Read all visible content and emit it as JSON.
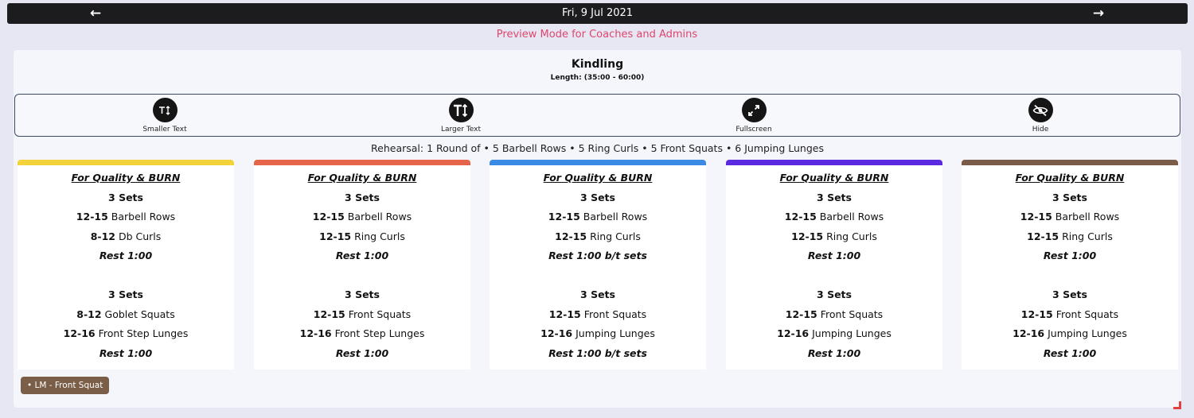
{
  "header": {
    "date": "Fri, 9 Jul 2021",
    "prev_icon": "arrow-left-icon",
    "next_icon": "arrow-right-icon"
  },
  "preview_notice": "Preview Mode for Coaches and Admins",
  "workout": {
    "title": "Kindling",
    "length": "Length: (35:00 - 60:00)"
  },
  "toolbar": [
    {
      "label": "Smaller Text",
      "icon": "smaller-text-icon"
    },
    {
      "label": "Larger Text",
      "icon": "larger-text-icon"
    },
    {
      "label": "Fullscreen",
      "icon": "fullscreen-icon"
    },
    {
      "label": "Hide",
      "icon": "hide-eye-icon"
    }
  ],
  "rehearsal": "Rehearsal: 1 Round of • 5 Barbell Rows • 5 Ring Curls • 5 Front Squats • 6 Jumping Lunges",
  "tracks": [
    {
      "color": "#f2d33c",
      "lines": [
        {
          "style": "header",
          "bold": "",
          "text": "For Quality & BURN"
        },
        {
          "style": "b",
          "bold": "3 Sets",
          "text": ""
        },
        {
          "style": "rx",
          "bold": "12-15",
          "text": " Barbell Rows"
        },
        {
          "style": "rx",
          "bold": "8-12",
          "text": " Db Curls"
        },
        {
          "style": "bi",
          "bold": "Rest 1:00",
          "text": ""
        },
        {
          "style": "blank",
          "bold": "",
          "text": ""
        },
        {
          "style": "b",
          "bold": "3 Sets",
          "text": ""
        },
        {
          "style": "rx",
          "bold": "8-12",
          "text": " Goblet Squats"
        },
        {
          "style": "rx",
          "bold": "12-16",
          "text": " Front Step Lunges"
        },
        {
          "style": "bi",
          "bold": "Rest 1:00",
          "text": ""
        }
      ]
    },
    {
      "color": "#e5644a",
      "lines": [
        {
          "style": "header",
          "bold": "",
          "text": "For Quality & BURN"
        },
        {
          "style": "b",
          "bold": "3 Sets",
          "text": ""
        },
        {
          "style": "rx",
          "bold": "12-15",
          "text": " Barbell Rows"
        },
        {
          "style": "rx",
          "bold": "12-15",
          "text": " Ring Curls"
        },
        {
          "style": "bi",
          "bold": "Rest 1:00",
          "text": ""
        },
        {
          "style": "blank",
          "bold": "",
          "text": ""
        },
        {
          "style": "b",
          "bold": "3 Sets",
          "text": ""
        },
        {
          "style": "rx",
          "bold": "12-15",
          "text": " Front Squats"
        },
        {
          "style": "rx",
          "bold": "12-16",
          "text": " Front Step Lunges"
        },
        {
          "style": "bi",
          "bold": "Rest 1:00",
          "text": ""
        }
      ]
    },
    {
      "color": "#3b8ae6",
      "lines": [
        {
          "style": "header",
          "bold": "",
          "text": "For Quality & BURN"
        },
        {
          "style": "b",
          "bold": "3 Sets",
          "text": ""
        },
        {
          "style": "rx",
          "bold": "12-15",
          "text": " Barbell Rows"
        },
        {
          "style": "rx",
          "bold": "12-15",
          "text": " Ring Curls"
        },
        {
          "style": "bi",
          "bold": "Rest 1:00 b/t sets",
          "text": ""
        },
        {
          "style": "blank",
          "bold": "",
          "text": ""
        },
        {
          "style": "b",
          "bold": "3 Sets",
          "text": ""
        },
        {
          "style": "rx",
          "bold": "12-15",
          "text": " Front Squats"
        },
        {
          "style": "rx",
          "bold": "12-16",
          "text": " Jumping Lunges"
        },
        {
          "style": "bi",
          "bold": "Rest 1:00 b/t sets",
          "text": ""
        }
      ]
    },
    {
      "color": "#5b2ae0",
      "lines": [
        {
          "style": "header",
          "bold": "",
          "text": "For Quality & BURN"
        },
        {
          "style": "b",
          "bold": "3 Sets",
          "text": ""
        },
        {
          "style": "rx",
          "bold": "12-15",
          "text": " Barbell Rows"
        },
        {
          "style": "rx",
          "bold": "12-15",
          "text": " Ring Curls"
        },
        {
          "style": "bi",
          "bold": "Rest 1:00",
          "text": ""
        },
        {
          "style": "blank",
          "bold": "",
          "text": ""
        },
        {
          "style": "b",
          "bold": "3 Sets",
          "text": ""
        },
        {
          "style": "rx",
          "bold": "12-15",
          "text": " Front Squats"
        },
        {
          "style": "rx",
          "bold": "12-16",
          "text": " Jumping Lunges"
        },
        {
          "style": "bi",
          "bold": "Rest 1:00",
          "text": ""
        }
      ]
    },
    {
      "color": "#7a5c48",
      "lines": [
        {
          "style": "header",
          "bold": "",
          "text": "For Quality & BURN"
        },
        {
          "style": "b",
          "bold": "3 Sets",
          "text": ""
        },
        {
          "style": "rx",
          "bold": "12-15",
          "text": " Barbell Rows"
        },
        {
          "style": "rx",
          "bold": "12-15",
          "text": " Ring Curls"
        },
        {
          "style": "bi",
          "bold": "Rest 1:00",
          "text": ""
        },
        {
          "style": "blank",
          "bold": "",
          "text": ""
        },
        {
          "style": "b",
          "bold": "3 Sets",
          "text": ""
        },
        {
          "style": "rx",
          "bold": "12-15",
          "text": " Front Squats"
        },
        {
          "style": "rx",
          "bold": "12-16",
          "text": " Jumping Lunges"
        },
        {
          "style": "bi",
          "bold": "Rest 1:00",
          "text": ""
        }
      ]
    }
  ],
  "movement_tag": "• LM - Front Squat",
  "colors": {
    "preview": "#e0456c",
    "topbar": "#1c1c1e",
    "corner": "#e04040"
  }
}
